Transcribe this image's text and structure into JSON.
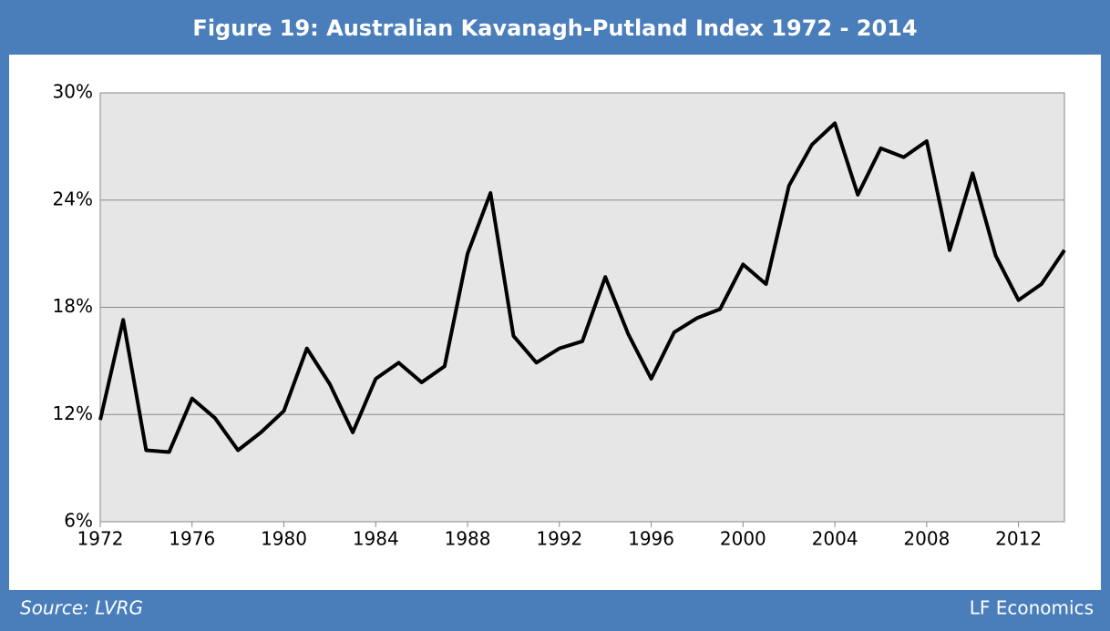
{
  "chart_data": {
    "type": "line",
    "title": "Figure 19: Australian Kavanagh-Putland Index 1972 - 2014",
    "source": "Source: LVRG",
    "credit": "LF Economics",
    "x": [
      1972,
      1973,
      1974,
      1975,
      1976,
      1977,
      1978,
      1979,
      1980,
      1981,
      1982,
      1983,
      1984,
      1985,
      1986,
      1987,
      1988,
      1989,
      1990,
      1991,
      1992,
      1993,
      1994,
      1995,
      1996,
      1997,
      1998,
      1999,
      2000,
      2001,
      2002,
      2003,
      2004,
      2005,
      2006,
      2007,
      2008,
      2009,
      2010,
      2011,
      2012,
      2013,
      2014
    ],
    "series": [
      {
        "color": "#000000",
        "values": [
          11.7,
          17.3,
          10.0,
          9.9,
          12.9,
          11.8,
          10.0,
          11.0,
          12.2,
          15.7,
          13.7,
          11.0,
          14.0,
          14.9,
          13.8,
          14.7,
          21.0,
          24.4,
          16.4,
          14.9,
          15.7,
          16.1,
          19.7,
          16.5,
          14.0,
          16.6,
          17.4,
          17.9,
          20.4,
          19.3,
          24.8,
          27.1,
          28.3,
          24.3,
          26.9,
          26.4,
          27.3,
          21.2,
          25.5,
          20.9,
          18.4,
          19.3,
          21.2
        ]
      }
    ],
    "xlim": [
      1972,
      2014
    ],
    "xticks": [
      1972,
      1976,
      1980,
      1984,
      1988,
      1992,
      1996,
      2000,
      2004,
      2008,
      2012
    ],
    "ylim": [
      6,
      30
    ],
    "yticks": [
      {
        "value": 6,
        "label": "6%"
      },
      {
        "value": 12,
        "label": "12%"
      },
      {
        "value": 18,
        "label": "18%"
      },
      {
        "value": 24,
        "label": "24%"
      },
      {
        "value": 30,
        "label": "30%"
      }
    ],
    "grid": true
  }
}
